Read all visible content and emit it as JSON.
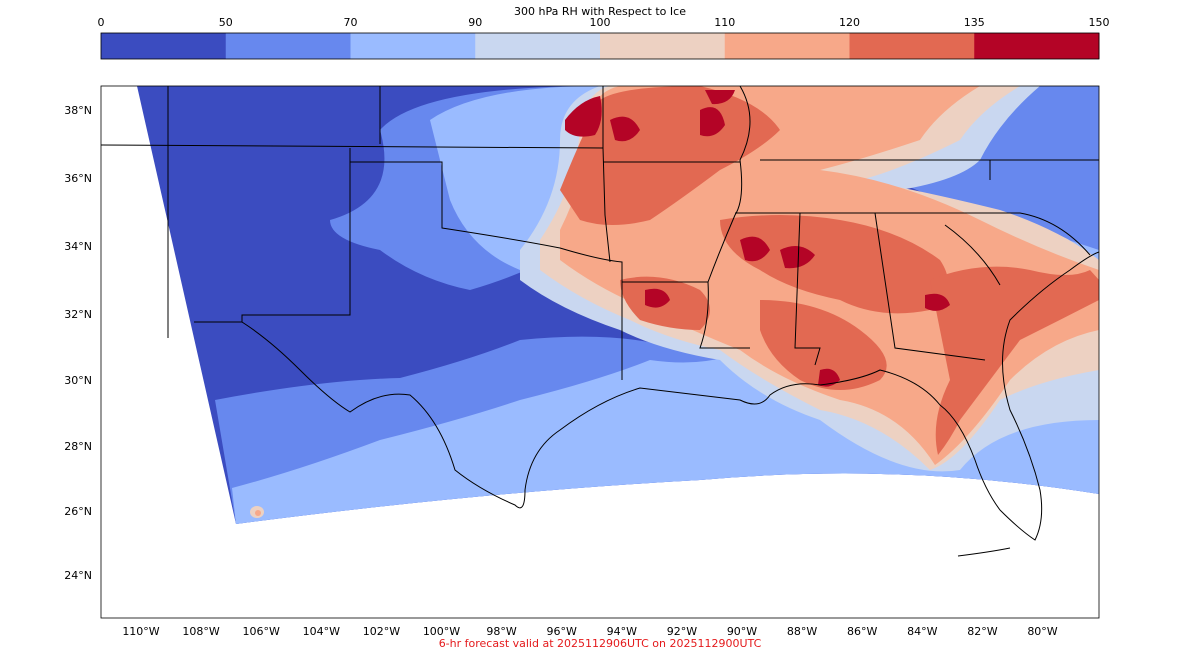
{
  "colorbar": {
    "title": "300 hPa RH with Respect to Ice",
    "levels": [
      "0",
      "50",
      "70",
      "90",
      "100",
      "110",
      "120",
      "135",
      "150"
    ],
    "colors": [
      "#3b4cc0",
      "#6788ee",
      "#9abbff",
      "#c9d7f0",
      "#edd1c2",
      "#f7a889",
      "#e26952",
      "#b40426"
    ]
  },
  "map": {
    "lat_labels": [
      "38°N",
      "36°N",
      "34°N",
      "32°N",
      "30°N",
      "28°N",
      "26°N",
      "24°N"
    ],
    "lon_labels": [
      "110°W",
      "108°W",
      "106°W",
      "104°W",
      "102°W",
      "100°W",
      "98°W",
      "96°W",
      "94°W",
      "92°W",
      "90°W",
      "88°W",
      "86°W",
      "84°W",
      "82°W",
      "80°W"
    ],
    "no_data_color": "#ffffff",
    "border_color": "#000000"
  },
  "footer": {
    "valid_text": "6-hr forecast valid at 2025112906UTC on 2025112900UTC"
  }
}
